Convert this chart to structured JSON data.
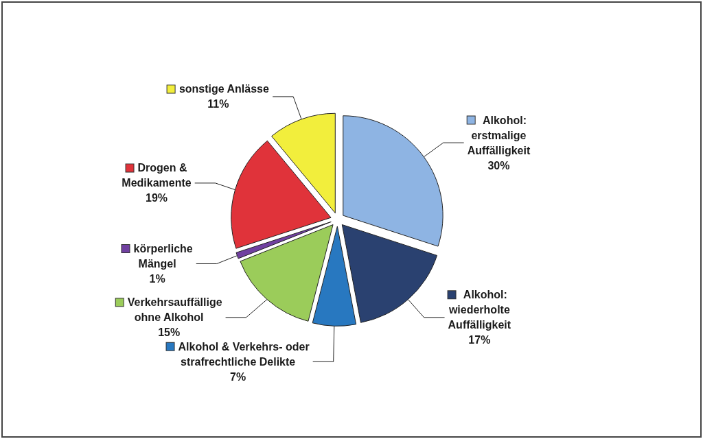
{
  "chart_data": {
    "type": "pie",
    "legend": true,
    "categories": [
      "Alkohol: erstmalige Auffälligkeit",
      "Alkohol: wiederholte Auffälligkeit",
      "Alkohol & Verkehrs- oder strafrechtliche Delikte",
      "Verkehrsauffällige ohne Alkohol",
      "körperliche Mängel",
      "Drogen & Medikamente",
      "sonstige Anlässe"
    ],
    "values": [
      30,
      17,
      7,
      15,
      1,
      19,
      11
    ],
    "colors": [
      "#8eb4e3",
      "#2a4170",
      "#2878c0",
      "#9bcc5a",
      "#7040a0",
      "#e0333a",
      "#f2ee3c"
    ],
    "value_labels": [
      "30%",
      "17%",
      "7%",
      "15%",
      "1%",
      "19%",
      "11%"
    ]
  }
}
